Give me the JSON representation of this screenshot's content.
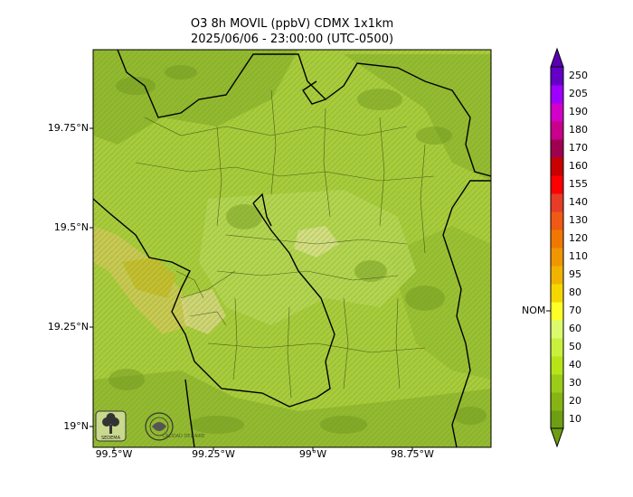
{
  "title_line1": "O3 8h MOVIL (ppbV) CDMX 1x1km",
  "title_line2": "2025/06/06 - 23:00:00 (UTC-0500)",
  "map": {
    "y_ticks": [
      "19.75°N",
      "19.5°N",
      "19.25°N",
      "19°N"
    ],
    "x_ticks": [
      "99.5°W",
      "99.25°W",
      "99°W",
      "98.75°W"
    ],
    "logos": [
      "SEDEMA",
      "CALIDAD DEL AIRE"
    ]
  },
  "colorbar": {
    "label_nom": "NOM",
    "nom_value": 70,
    "ticks": [
      "10",
      "20",
      "30",
      "40",
      "50",
      "60",
      "70",
      "80",
      "95",
      "110",
      "120",
      "130",
      "140",
      "155",
      "160",
      "170",
      "180",
      "190",
      "205",
      "250"
    ],
    "colors": [
      "#6e9e12",
      "#86b414",
      "#9ccc18",
      "#b6e418",
      "#c8f03c",
      "#dcfa6e",
      "#ffff28",
      "#f5d700",
      "#f0b400",
      "#f09600",
      "#f07800",
      "#f05a14",
      "#e63c28",
      "#ff0000",
      "#c80000",
      "#a00050",
      "#c8008c",
      "#d200c8",
      "#a000ff",
      "#6400c8"
    ],
    "under_color": "#6e9e12",
    "over_color": "#5a00b4"
  },
  "legend_colors": {
    "terrain_base": "#a8cc3c",
    "terrain_dark": "#7ea628",
    "terrain_light": "#c8e46e",
    "yellow_patch": "#d8d250",
    "boundary": "#000000"
  }
}
